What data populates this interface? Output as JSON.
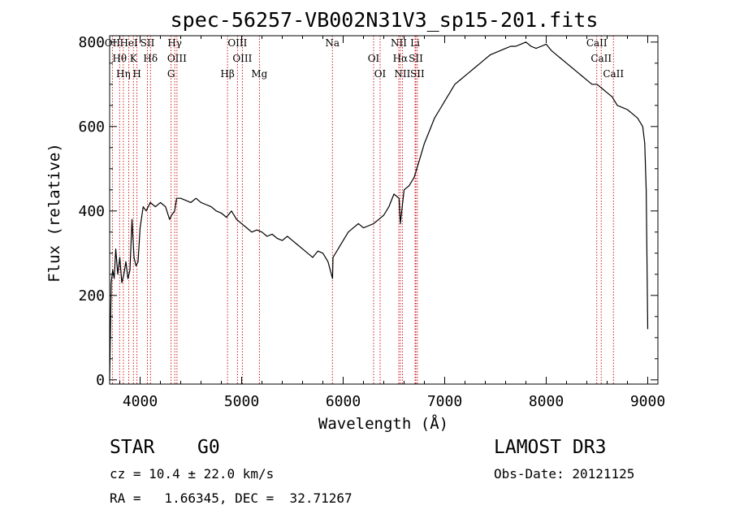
{
  "chart_data": {
    "type": "line",
    "title": "spec-56257-VB002N31V3_sp15-201.fits",
    "xlabel": "Wavelength (Å)",
    "ylabel": "Flux (relative)",
    "xlim": [
      3700,
      9100
    ],
    "ylim": [
      -10,
      815
    ],
    "xticks": [
      4000,
      5000,
      6000,
      7000,
      8000,
      9000
    ],
    "yticks": [
      0,
      200,
      400,
      600,
      800
    ],
    "series": [
      {
        "name": "flux",
        "x": [
          3700,
          3715,
          3730,
          3745,
          3760,
          3780,
          3800,
          3820,
          3840,
          3860,
          3880,
          3900,
          3920,
          3940,
          3960,
          3980,
          4000,
          4030,
          4060,
          4100,
          4150,
          4200,
          4250,
          4290,
          4310,
          4340,
          4360,
          4400,
          4450,
          4500,
          4550,
          4600,
          4650,
          4700,
          4750,
          4800,
          4850,
          4900,
          4950,
          5000,
          5050,
          5100,
          5150,
          5200,
          5250,
          5300,
          5350,
          5400,
          5450,
          5500,
          5550,
          5600,
          5650,
          5700,
          5750,
          5800,
          5850,
          5895,
          5900,
          5950,
          6000,
          6050,
          6100,
          6150,
          6200,
          6250,
          6300,
          6350,
          6400,
          6450,
          6500,
          6550,
          6563,
          6600,
          6650,
          6700,
          6750,
          6800,
          6850,
          6900,
          6950,
          7000,
          7050,
          7100,
          7150,
          7200,
          7250,
          7300,
          7350,
          7400,
          7450,
          7500,
          7550,
          7600,
          7650,
          7700,
          7750,
          7800,
          7850,
          7900,
          7950,
          8000,
          8050,
          8100,
          8150,
          8200,
          8250,
          8300,
          8350,
          8400,
          8450,
          8500,
          8550,
          8600,
          8650,
          8700,
          8750,
          8800,
          8850,
          8900,
          8950,
          8970,
          8985,
          9000
        ],
        "values": [
          0,
          230,
          260,
          240,
          310,
          250,
          290,
          230,
          250,
          280,
          240,
          260,
          380,
          290,
          270,
          280,
          360,
          410,
          400,
          420,
          410,
          420,
          410,
          380,
          390,
          400,
          430,
          430,
          425,
          420,
          430,
          420,
          415,
          410,
          400,
          395,
          385,
          400,
          380,
          370,
          360,
          350,
          355,
          350,
          340,
          345,
          335,
          330,
          340,
          330,
          320,
          310,
          300,
          290,
          305,
          300,
          280,
          240,
          290,
          310,
          330,
          350,
          360,
          370,
          360,
          365,
          370,
          380,
          390,
          410,
          440,
          430,
          370,
          450,
          460,
          480,
          520,
          560,
          590,
          620,
          640,
          660,
          680,
          700,
          710,
          720,
          730,
          740,
          750,
          760,
          770,
          775,
          780,
          785,
          790,
          790,
          795,
          800,
          790,
          785,
          790,
          795,
          780,
          770,
          760,
          750,
          740,
          730,
          720,
          710,
          700,
          700,
          690,
          680,
          670,
          650,
          645,
          640,
          630,
          620,
          600,
          560,
          450,
          120
        ]
      }
    ],
    "line_markers": [
      {
        "name": "OII",
        "wavelength": 3727
      },
      {
        "name": "Hθ",
        "wavelength": 3798
      },
      {
        "name": "Hη",
        "wavelength": 3835
      },
      {
        "name": "HeI",
        "wavelength": 3889
      },
      {
        "name": "K",
        "wavelength": 3934
      },
      {
        "name": "H",
        "wavelength": 3969
      },
      {
        "name": "SII",
        "wavelength": 4072
      },
      {
        "name": "Hδ",
        "wavelength": 4102
      },
      {
        "name": "G",
        "wavelength": 4305
      },
      {
        "name": "Hγ",
        "wavelength": 4341
      },
      {
        "name": "OIII",
        "wavelength": 4363
      },
      {
        "name": "Hβ",
        "wavelength": 4861
      },
      {
        "name": "OIII",
        "wavelength": 4959
      },
      {
        "name": "OIII",
        "wavelength": 5007
      },
      {
        "name": "Mg",
        "wavelength": 5175
      },
      {
        "name": "Na",
        "wavelength": 5894
      },
      {
        "name": "OI",
        "wavelength": 6300
      },
      {
        "name": "OI",
        "wavelength": 6364
      },
      {
        "name": "NII",
        "wavelength": 6548
      },
      {
        "name": "Hα",
        "wavelength": 6563
      },
      {
        "name": "NII",
        "wavelength": 6583
      },
      {
        "name": "Li",
        "wavelength": 6708
      },
      {
        "name": "SII",
        "wavelength": 6716
      },
      {
        "name": "SII",
        "wavelength": 6731
      },
      {
        "name": "CaII",
        "wavelength": 8498
      },
      {
        "name": "CaII",
        "wavelength": 8542
      },
      {
        "name": "CaII",
        "wavelength": 8662
      }
    ],
    "marker_color": "#cc0000"
  },
  "info": {
    "class_label": "STAR",
    "subclass_label": "G0",
    "survey_label": "LAMOST DR3",
    "cz_text": "cz = 10.4 ± 22.0 km/s",
    "obs_date_text": "Obs-Date: 20121125",
    "radec_text": "RA =   1.66345, DEC =  32.71267"
  }
}
